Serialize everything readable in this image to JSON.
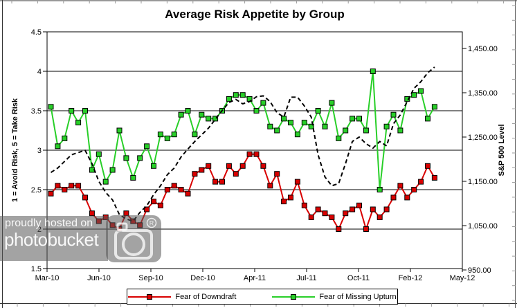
{
  "title": "Average Risk Appetite by Group",
  "watermark": {
    "line1": "proudly hosted on",
    "line2": "photobucket",
    "registered": "R"
  },
  "colors": {
    "downdraft_red": "#d90000",
    "upturn_green": "#28cf28",
    "sp500_black": "#000000",
    "grid_black": "#000000",
    "edge_tick_gray": "#9a9a9a"
  },
  "chart_data": {
    "type": "line",
    "title": "Average Risk Appetite by Group",
    "x_tick_labels": [
      "Mar-10",
      "Jun-10",
      "Sep-10",
      "Dec-10",
      "Apr-11",
      "Jul-11",
      "Oct-11",
      "Feb-12",
      "May-12"
    ],
    "y_left": {
      "label": "1 = Avoid Risk, 5 = Take Risk",
      "min": 1.5,
      "max": 4.5,
      "step": 0.5,
      "tick_labels": [
        "4.5",
        "4",
        "3.5",
        "3",
        "2.5",
        "2",
        "1.5"
      ]
    },
    "y_right": {
      "label": "S&P 500 Level",
      "min": 950,
      "max": 1450,
      "step": 100,
      "tick_labels": [
        "1,450.00",
        "1,350.00",
        "1,250.00",
        "1,150.00",
        "1,050.00",
        "950.00"
      ]
    },
    "grid": "horizontal",
    "legend_position": "bottom",
    "series": [
      {
        "name": "Fear of Missing Upturn",
        "color": "#28cf28",
        "axis": "left",
        "marker": "square",
        "style": "solid",
        "in_legend": true,
        "values": [
          3.55,
          3.05,
          3.15,
          3.5,
          3.35,
          3.5,
          2.75,
          2.95,
          2.6,
          2.75,
          3.25,
          2.9,
          2.65,
          2.9,
          3.05,
          2.8,
          3.2,
          3.15,
          3.2,
          3.45,
          3.5,
          3.2,
          3.45,
          3.4,
          3.4,
          3.5,
          3.65,
          3.7,
          3.7,
          3.65,
          3.5,
          3.6,
          3.3,
          3.25,
          3.4,
          3.35,
          3.2,
          3.35,
          3.3,
          3.5,
          3.3,
          3.6,
          3.15,
          3.25,
          3.4,
          3.4,
          3.25,
          4.0,
          2.5,
          3.3,
          3.45,
          3.25,
          3.65,
          3.7,
          3.75,
          3.4,
          3.55
        ]
      },
      {
        "name": "Fear of Downdraft",
        "color": "#d90000",
        "axis": "left",
        "marker": "square",
        "style": "solid",
        "in_legend": true,
        "values": [
          2.45,
          2.55,
          2.5,
          2.55,
          2.55,
          2.4,
          2.2,
          2.1,
          2.15,
          2.05,
          2.0,
          2.2,
          2.1,
          2.05,
          2.25,
          2.35,
          2.3,
          2.5,
          2.55,
          2.5,
          2.45,
          2.7,
          2.75,
          2.8,
          2.6,
          2.6,
          2.8,
          2.7,
          2.8,
          2.95,
          2.95,
          2.8,
          2.55,
          2.7,
          2.35,
          2.4,
          2.6,
          2.3,
          2.15,
          2.25,
          2.2,
          2.15,
          2.0,
          2.2,
          2.25,
          2.3,
          2.0,
          2.25,
          2.15,
          2.25,
          2.4,
          2.55,
          2.4,
          2.5,
          2.6,
          2.8,
          2.65
        ]
      },
      {
        "name": "S&P 500",
        "color": "#000000",
        "axis": "right",
        "marker": "none",
        "style": "dashed",
        "in_legend": false,
        "values": [
          1170,
          1180,
          1195,
          1210,
          1215,
          1220,
          1190,
          1150,
          1125,
          1108,
          1075,
          1065,
          1060,
          1080,
          1095,
          1120,
          1140,
          1165,
          1180,
          1205,
          1223,
          1240,
          1255,
          1270,
          1290,
          1310,
          1328,
          1335,
          1325,
          1330,
          1341,
          1343,
          1330,
          1305,
          1295,
          1340,
          1340,
          1320,
          1295,
          1210,
          1160,
          1140,
          1145,
          1190,
          1240,
          1250,
          1235,
          1225,
          1240,
          1230,
          1280,
          1300,
          1330,
          1360,
          1375,
          1395,
          1408
        ]
      }
    ],
    "legend_entries": [
      "Fear of Downdraft",
      "Fear of Missing Upturn"
    ]
  }
}
